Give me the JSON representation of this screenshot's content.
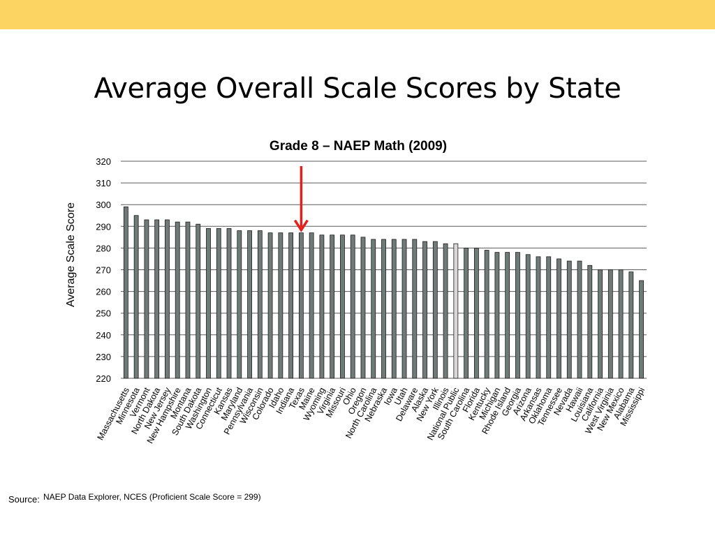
{
  "slide": {
    "title": "Average Overall Scale Scores by State",
    "source_label": "Source:",
    "source_text": "NAEP Data Explorer, NCES (Proficient Scale Score = 299)"
  },
  "colors": {
    "top_band": "#FCD462",
    "bar": "#707A78",
    "highlight_bar": "#D8D8D8",
    "bar_stroke": "#1A1A1A",
    "gridline": "#5A5A5A",
    "arrow": "#E3201B"
  },
  "chart_data": {
    "type": "bar",
    "title": "Grade 8 – NAEP Math (2009)",
    "xlabel": "",
    "ylabel": "Average Scale Score",
    "ylim": [
      220,
      320
    ],
    "yticks": [
      220,
      230,
      240,
      250,
      260,
      270,
      280,
      290,
      300,
      310,
      320
    ],
    "grid": true,
    "highlight_category": "National Public",
    "annotation": {
      "type": "arrow",
      "points_to": "Texas"
    },
    "categories": [
      "Massachusetts",
      "Minnesota",
      "Vermont",
      "North Dakota",
      "New Jersey",
      "New Hampshire",
      "Montana",
      "South Dakota",
      "Washington",
      "Connecticut",
      "Kansas",
      "Maryland",
      "Pennsylvania",
      "Wisconsin",
      "Colorado",
      "Idaho",
      "Indiana",
      "Texas",
      "Maine",
      "Wyoming",
      "Virginia",
      "Missouri",
      "Ohio",
      "Oregon",
      "North Carolina",
      "Nebraska",
      "Iowa",
      "Utah",
      "Delaware",
      "Alaska",
      "New York",
      "Illinois",
      "National Public",
      "South Carolina",
      "Florida",
      "Kentucky",
      "Michigan",
      "Rhode Island",
      "Georgia",
      "Arizona",
      "Arkansas",
      "Oklahoma",
      "Tennessee",
      "Nevada",
      "Hawaii",
      "Louisiana",
      "California",
      "West Virginia",
      "New Mexico",
      "Alabama",
      "Mississippi"
    ],
    "values": [
      299,
      295,
      293,
      293,
      293,
      292,
      292,
      291,
      289,
      289,
      289,
      288,
      288,
      288,
      287,
      287,
      287,
      287,
      287,
      286,
      286,
      286,
      286,
      285,
      284,
      284,
      284,
      284,
      284,
      283,
      283,
      282,
      282,
      280,
      280,
      279,
      278,
      278,
      278,
      277,
      276,
      276,
      275,
      274,
      274,
      272,
      270,
      270,
      270,
      269,
      265
    ]
  }
}
